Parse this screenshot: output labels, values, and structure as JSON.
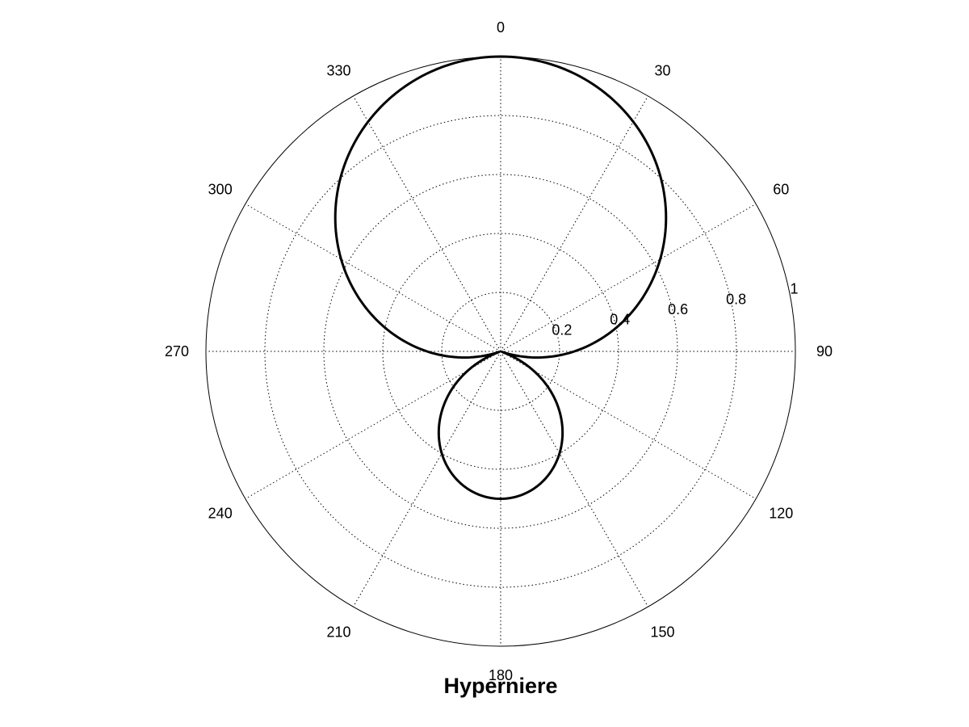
{
  "chart_data": {
    "type": "line",
    "subtype": "polar",
    "title": "Hyperniere",
    "pattern": "hypercardioid",
    "equation": "abs(0.25 + 0.75*cos(theta))",
    "theta_zero": "top",
    "theta_direction": "clockwise",
    "r_range": [
      0,
      1
    ],
    "r_ticks": [
      0.2,
      0.4,
      0.6,
      0.8,
      1
    ],
    "r_tick_labels": [
      "0.2",
      "0.4",
      "0.6",
      "0.8",
      "1"
    ],
    "theta_ticks": [
      0,
      30,
      60,
      90,
      120,
      150,
      180,
      210,
      240,
      270,
      300,
      330
    ],
    "theta_tick_labels": [
      "0",
      "30",
      "60",
      "90",
      "120",
      "150",
      "180",
      "210",
      "240",
      "270",
      "300",
      "330"
    ],
    "grid": true,
    "grid_style": "dotted",
    "line_color": "#000000"
  }
}
